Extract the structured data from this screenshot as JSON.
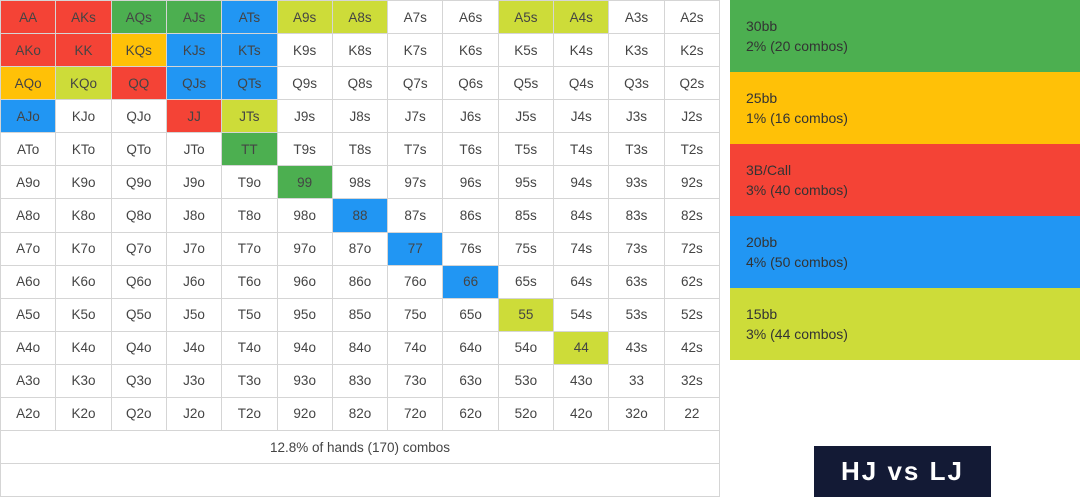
{
  "colors": {
    "30bb": "#4caf50",
    "25bb": "#ffc107",
    "3B/Call": "#f44336",
    "20bb": "#2196f3",
    "15bb": "#cddc39",
    "none": "#ffffff"
  },
  "grid": {
    "rows": [
      [
        {
          "h": "AA",
          "c": "3B/Call"
        },
        {
          "h": "AKs",
          "c": "3B/Call"
        },
        {
          "h": "AQs",
          "c": "30bb"
        },
        {
          "h": "AJs",
          "c": "30bb"
        },
        {
          "h": "ATs",
          "c": "20bb"
        },
        {
          "h": "A9s",
          "c": "15bb"
        },
        {
          "h": "A8s",
          "c": "15bb"
        },
        {
          "h": "A7s",
          "c": "none"
        },
        {
          "h": "A6s",
          "c": "none"
        },
        {
          "h": "A5s",
          "c": "15bb"
        },
        {
          "h": "A4s",
          "c": "15bb"
        },
        {
          "h": "A3s",
          "c": "none"
        },
        {
          "h": "A2s",
          "c": "none"
        }
      ],
      [
        {
          "h": "AKo",
          "c": "3B/Call"
        },
        {
          "h": "KK",
          "c": "3B/Call"
        },
        {
          "h": "KQs",
          "c": "25bb"
        },
        {
          "h": "KJs",
          "c": "20bb"
        },
        {
          "h": "KTs",
          "c": "20bb"
        },
        {
          "h": "K9s",
          "c": "none"
        },
        {
          "h": "K8s",
          "c": "none"
        },
        {
          "h": "K7s",
          "c": "none"
        },
        {
          "h": "K6s",
          "c": "none"
        },
        {
          "h": "K5s",
          "c": "none"
        },
        {
          "h": "K4s",
          "c": "none"
        },
        {
          "h": "K3s",
          "c": "none"
        },
        {
          "h": "K2s",
          "c": "none"
        }
      ],
      [
        {
          "h": "AQo",
          "c": "25bb"
        },
        {
          "h": "KQo",
          "c": "15bb"
        },
        {
          "h": "QQ",
          "c": "3B/Call"
        },
        {
          "h": "QJs",
          "c": "20bb"
        },
        {
          "h": "QTs",
          "c": "20bb"
        },
        {
          "h": "Q9s",
          "c": "none"
        },
        {
          "h": "Q8s",
          "c": "none"
        },
        {
          "h": "Q7s",
          "c": "none"
        },
        {
          "h": "Q6s",
          "c": "none"
        },
        {
          "h": "Q5s",
          "c": "none"
        },
        {
          "h": "Q4s",
          "c": "none"
        },
        {
          "h": "Q3s",
          "c": "none"
        },
        {
          "h": "Q2s",
          "c": "none"
        }
      ],
      [
        {
          "h": "AJo",
          "c": "20bb"
        },
        {
          "h": "KJo",
          "c": "none"
        },
        {
          "h": "QJo",
          "c": "none"
        },
        {
          "h": "JJ",
          "c": "3B/Call"
        },
        {
          "h": "JTs",
          "c": "15bb"
        },
        {
          "h": "J9s",
          "c": "none"
        },
        {
          "h": "J8s",
          "c": "none"
        },
        {
          "h": "J7s",
          "c": "none"
        },
        {
          "h": "J6s",
          "c": "none"
        },
        {
          "h": "J5s",
          "c": "none"
        },
        {
          "h": "J4s",
          "c": "none"
        },
        {
          "h": "J3s",
          "c": "none"
        },
        {
          "h": "J2s",
          "c": "none"
        }
      ],
      [
        {
          "h": "ATo",
          "c": "none"
        },
        {
          "h": "KTo",
          "c": "none"
        },
        {
          "h": "QTo",
          "c": "none"
        },
        {
          "h": "JTo",
          "c": "none"
        },
        {
          "h": "TT",
          "c": "30bb"
        },
        {
          "h": "T9s",
          "c": "none"
        },
        {
          "h": "T8s",
          "c": "none"
        },
        {
          "h": "T7s",
          "c": "none"
        },
        {
          "h": "T6s",
          "c": "none"
        },
        {
          "h": "T5s",
          "c": "none"
        },
        {
          "h": "T4s",
          "c": "none"
        },
        {
          "h": "T3s",
          "c": "none"
        },
        {
          "h": "T2s",
          "c": "none"
        }
      ],
      [
        {
          "h": "A9o",
          "c": "none"
        },
        {
          "h": "K9o",
          "c": "none"
        },
        {
          "h": "Q9o",
          "c": "none"
        },
        {
          "h": "J9o",
          "c": "none"
        },
        {
          "h": "T9o",
          "c": "none"
        },
        {
          "h": "99",
          "c": "30bb"
        },
        {
          "h": "98s",
          "c": "none"
        },
        {
          "h": "97s",
          "c": "none"
        },
        {
          "h": "96s",
          "c": "none"
        },
        {
          "h": "95s",
          "c": "none"
        },
        {
          "h": "94s",
          "c": "none"
        },
        {
          "h": "93s",
          "c": "none"
        },
        {
          "h": "92s",
          "c": "none"
        }
      ],
      [
        {
          "h": "A8o",
          "c": "none"
        },
        {
          "h": "K8o",
          "c": "none"
        },
        {
          "h": "Q8o",
          "c": "none"
        },
        {
          "h": "J8o",
          "c": "none"
        },
        {
          "h": "T8o",
          "c": "none"
        },
        {
          "h": "98o",
          "c": "none"
        },
        {
          "h": "88",
          "c": "20bb"
        },
        {
          "h": "87s",
          "c": "none"
        },
        {
          "h": "86s",
          "c": "none"
        },
        {
          "h": "85s",
          "c": "none"
        },
        {
          "h": "84s",
          "c": "none"
        },
        {
          "h": "83s",
          "c": "none"
        },
        {
          "h": "82s",
          "c": "none"
        }
      ],
      [
        {
          "h": "A7o",
          "c": "none"
        },
        {
          "h": "K7o",
          "c": "none"
        },
        {
          "h": "Q7o",
          "c": "none"
        },
        {
          "h": "J7o",
          "c": "none"
        },
        {
          "h": "T7o",
          "c": "none"
        },
        {
          "h": "97o",
          "c": "none"
        },
        {
          "h": "87o",
          "c": "none"
        },
        {
          "h": "77",
          "c": "20bb"
        },
        {
          "h": "76s",
          "c": "none"
        },
        {
          "h": "75s",
          "c": "none"
        },
        {
          "h": "74s",
          "c": "none"
        },
        {
          "h": "73s",
          "c": "none"
        },
        {
          "h": "72s",
          "c": "none"
        }
      ],
      [
        {
          "h": "A6o",
          "c": "none"
        },
        {
          "h": "K6o",
          "c": "none"
        },
        {
          "h": "Q6o",
          "c": "none"
        },
        {
          "h": "J6o",
          "c": "none"
        },
        {
          "h": "T6o",
          "c": "none"
        },
        {
          "h": "96o",
          "c": "none"
        },
        {
          "h": "86o",
          "c": "none"
        },
        {
          "h": "76o",
          "c": "none"
        },
        {
          "h": "66",
          "c": "20bb"
        },
        {
          "h": "65s",
          "c": "none"
        },
        {
          "h": "64s",
          "c": "none"
        },
        {
          "h": "63s",
          "c": "none"
        },
        {
          "h": "62s",
          "c": "none"
        }
      ],
      [
        {
          "h": "A5o",
          "c": "none"
        },
        {
          "h": "K5o",
          "c": "none"
        },
        {
          "h": "Q5o",
          "c": "none"
        },
        {
          "h": "J5o",
          "c": "none"
        },
        {
          "h": "T5o",
          "c": "none"
        },
        {
          "h": "95o",
          "c": "none"
        },
        {
          "h": "85o",
          "c": "none"
        },
        {
          "h": "75o",
          "c": "none"
        },
        {
          "h": "65o",
          "c": "none"
        },
        {
          "h": "55",
          "c": "15bb"
        },
        {
          "h": "54s",
          "c": "none"
        },
        {
          "h": "53s",
          "c": "none"
        },
        {
          "h": "52s",
          "c": "none"
        }
      ],
      [
        {
          "h": "A4o",
          "c": "none"
        },
        {
          "h": "K4o",
          "c": "none"
        },
        {
          "h": "Q4o",
          "c": "none"
        },
        {
          "h": "J4o",
          "c": "none"
        },
        {
          "h": "T4o",
          "c": "none"
        },
        {
          "h": "94o",
          "c": "none"
        },
        {
          "h": "84o",
          "c": "none"
        },
        {
          "h": "74o",
          "c": "none"
        },
        {
          "h": "64o",
          "c": "none"
        },
        {
          "h": "54o",
          "c": "none"
        },
        {
          "h": "44",
          "c": "15bb"
        },
        {
          "h": "43s",
          "c": "none"
        },
        {
          "h": "42s",
          "c": "none"
        }
      ],
      [
        {
          "h": "A3o",
          "c": "none"
        },
        {
          "h": "K3o",
          "c": "none"
        },
        {
          "h": "Q3o",
          "c": "none"
        },
        {
          "h": "J3o",
          "c": "none"
        },
        {
          "h": "T3o",
          "c": "none"
        },
        {
          "h": "93o",
          "c": "none"
        },
        {
          "h": "83o",
          "c": "none"
        },
        {
          "h": "73o",
          "c": "none"
        },
        {
          "h": "63o",
          "c": "none"
        },
        {
          "h": "53o",
          "c": "none"
        },
        {
          "h": "43o",
          "c": "none"
        },
        {
          "h": "33",
          "c": "none"
        },
        {
          "h": "32s",
          "c": "none"
        }
      ],
      [
        {
          "h": "A2o",
          "c": "none"
        },
        {
          "h": "K2o",
          "c": "none"
        },
        {
          "h": "Q2o",
          "c": "none"
        },
        {
          "h": "J2o",
          "c": "none"
        },
        {
          "h": "T2o",
          "c": "none"
        },
        {
          "h": "92o",
          "c": "none"
        },
        {
          "h": "82o",
          "c": "none"
        },
        {
          "h": "72o",
          "c": "none"
        },
        {
          "h": "62o",
          "c": "none"
        },
        {
          "h": "52o",
          "c": "none"
        },
        {
          "h": "42o",
          "c": "none"
        },
        {
          "h": "32o",
          "c": "none"
        },
        {
          "h": "22",
          "c": "none"
        }
      ]
    ]
  },
  "summary": "12.8% of hands (170) combos",
  "legend": [
    {
      "key": "30bb",
      "title": "30bb",
      "detail": "2% (20 combos)"
    },
    {
      "key": "25bb",
      "title": "25bb",
      "detail": "1% (16 combos)"
    },
    {
      "key": "3B/Call",
      "title": "3B/Call",
      "detail": "3% (40 combos)"
    },
    {
      "key": "20bb",
      "title": "20bb",
      "detail": "4% (50 combos)"
    },
    {
      "key": "15bb",
      "title": "15bb",
      "detail": "3% (44 combos)"
    }
  ],
  "badge": "HJ vs LJ"
}
